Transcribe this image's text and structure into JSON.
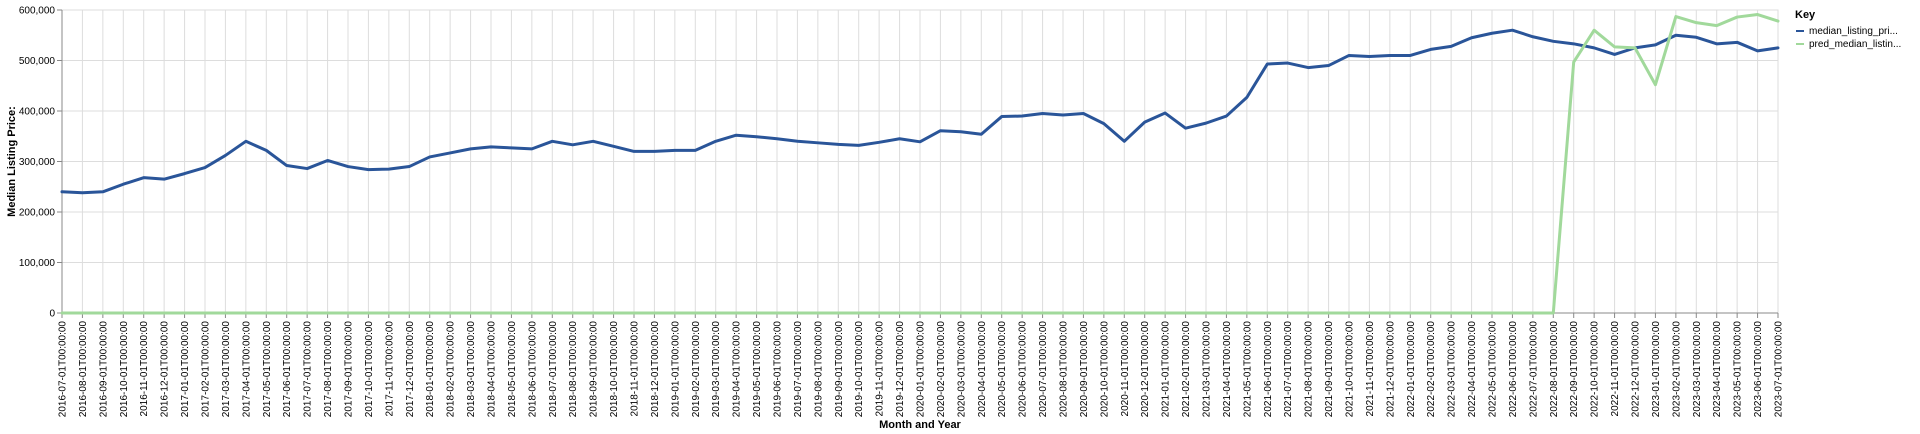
{
  "chart_data": {
    "type": "line",
    "xlabel": "Month and Year",
    "ylabel": "Median Listing Price:",
    "ylim": [
      0,
      600000
    ],
    "yticks": [
      0,
      100000,
      200000,
      300000,
      400000,
      500000,
      600000
    ],
    "ytick_labels": [
      "0",
      "100,000",
      "200,000",
      "300,000",
      "400,000",
      "500,000",
      "600,000"
    ],
    "grid": true,
    "legend": {
      "title": "Key",
      "position": "right"
    },
    "x": [
      "2016-07-01T00:00:00",
      "2016-08-01T00:00:00",
      "2016-09-01T00:00:00",
      "2016-10-01T00:00:00",
      "2016-11-01T00:00:00",
      "2016-12-01T00:00:00",
      "2017-01-01T00:00:00",
      "2017-02-01T00:00:00",
      "2017-03-01T00:00:00",
      "2017-04-01T00:00:00",
      "2017-05-01T00:00:00",
      "2017-06-01T00:00:00",
      "2017-07-01T00:00:00",
      "2017-08-01T00:00:00",
      "2017-09-01T00:00:00",
      "2017-10-01T00:00:00",
      "2017-11-01T00:00:00",
      "2017-12-01T00:00:00",
      "2018-01-01T00:00:00",
      "2018-02-01T00:00:00",
      "2018-03-01T00:00:00",
      "2018-04-01T00:00:00",
      "2018-05-01T00:00:00",
      "2018-06-01T00:00:00",
      "2018-07-01T00:00:00",
      "2018-08-01T00:00:00",
      "2018-09-01T00:00:00",
      "2018-10-01T00:00:00",
      "2018-11-01T00:00:00",
      "2018-12-01T00:00:00",
      "2019-01-01T00:00:00",
      "2019-02-01T00:00:00",
      "2019-03-01T00:00:00",
      "2019-04-01T00:00:00",
      "2019-05-01T00:00:00",
      "2019-06-01T00:00:00",
      "2019-07-01T00:00:00",
      "2019-08-01T00:00:00",
      "2019-09-01T00:00:00",
      "2019-10-01T00:00:00",
      "2019-11-01T00:00:00",
      "2019-12-01T00:00:00",
      "2020-01-01T00:00:00",
      "2020-02-01T00:00:00",
      "2020-03-01T00:00:00",
      "2020-04-01T00:00:00",
      "2020-05-01T00:00:00",
      "2020-06-01T00:00:00",
      "2020-07-01T00:00:00",
      "2020-08-01T00:00:00",
      "2020-09-01T00:00:00",
      "2020-10-01T00:00:00",
      "2020-11-01T00:00:00",
      "2020-12-01T00:00:00",
      "2021-01-01T00:00:00",
      "2021-02-01T00:00:00",
      "2021-03-01T00:00:00",
      "2021-04-01T00:00:00",
      "2021-05-01T00:00:00",
      "2021-06-01T00:00:00",
      "2021-07-01T00:00:00",
      "2021-08-01T00:00:00",
      "2021-09-01T00:00:00",
      "2021-10-01T00:00:00",
      "2021-11-01T00:00:00",
      "2021-12-01T00:00:00",
      "2022-01-01T00:00:00",
      "2022-02-01T00:00:00",
      "2022-03-01T00:00:00",
      "2022-04-01T00:00:00",
      "2022-05-01T00:00:00",
      "2022-06-01T00:00:00",
      "2022-07-01T00:00:00",
      "2022-08-01T00:00:00",
      "2022-09-01T00:00:00",
      "2022-10-01T00:00:00",
      "2022-11-01T00:00:00",
      "2022-12-01T00:00:00",
      "2023-01-01T00:00:00",
      "2023-02-01T00:00:00",
      "2023-03-01T00:00:00",
      "2023-04-01T00:00:00",
      "2023-05-01T00:00:00",
      "2023-06-01T00:00:00",
      "2023-07-01T00:00:00"
    ],
    "series": [
      {
        "name": "median_listing_pri...",
        "color": "#2a5599",
        "values": [
          240000,
          238000,
          240000,
          255000,
          268000,
          265000,
          276000,
          288000,
          312000,
          340000,
          322000,
          292000,
          286000,
          302000,
          290000,
          284000,
          285000,
          290000,
          309000,
          317000,
          325000,
          329000,
          327000,
          325000,
          340000,
          333000,
          340000,
          330000,
          320000,
          320000,
          322000,
          322000,
          340000,
          352000,
          349000,
          345000,
          340000,
          337000,
          334000,
          332000,
          338000,
          345000,
          339000,
          361000,
          359000,
          354000,
          389000,
          390000,
          395000,
          392000,
          395000,
          375000,
          340000,
          378000,
          396000,
          366000,
          376000,
          390000,
          427000,
          493000,
          495000,
          486000,
          490000,
          510000,
          508000,
          510000,
          510000,
          522000,
          528000,
          545000,
          554000,
          560000,
          547000,
          538000,
          533000,
          525000,
          512000,
          525000,
          531000,
          550000,
          546000,
          533000,
          536000,
          519000,
          525000
        ]
      },
      {
        "name": "pred_median_listin...",
        "color": "#a1d99b",
        "values": [
          0,
          0,
          0,
          0,
          0,
          0,
          0,
          0,
          0,
          0,
          0,
          0,
          0,
          0,
          0,
          0,
          0,
          0,
          0,
          0,
          0,
          0,
          0,
          0,
          0,
          0,
          0,
          0,
          0,
          0,
          0,
          0,
          0,
          0,
          0,
          0,
          0,
          0,
          0,
          0,
          0,
          0,
          0,
          0,
          0,
          0,
          0,
          0,
          0,
          0,
          0,
          0,
          0,
          0,
          0,
          0,
          0,
          0,
          0,
          0,
          0,
          0,
          0,
          0,
          0,
          0,
          0,
          0,
          0,
          0,
          0,
          0,
          0,
          0,
          497000,
          560000,
          527000,
          525000,
          452000,
          587000,
          575000,
          569000,
          586000,
          591000,
          578000
        ]
      }
    ]
  }
}
